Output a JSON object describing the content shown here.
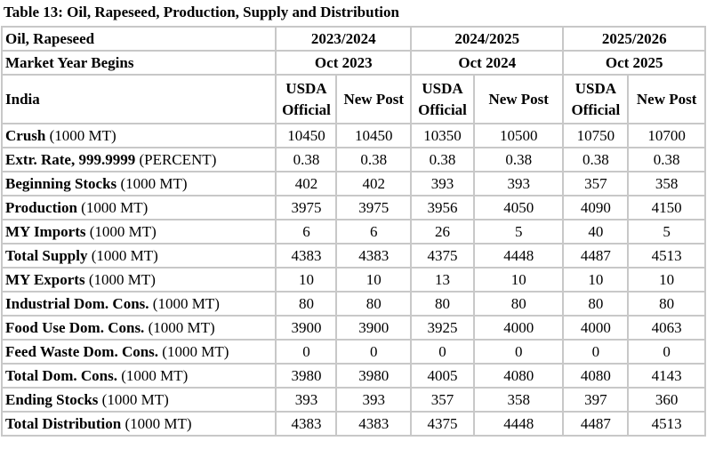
{
  "title": "Table 13: Oil, Rapeseed, Production, Supply and Distribution",
  "header": {
    "commodity": "Oil, Rapeseed",
    "market_year_label": "Market Year Begins",
    "country": "India",
    "years": [
      {
        "year": "2023/2024",
        "begins": "Oct 2023"
      },
      {
        "year": "2024/2025",
        "begins": "Oct 2024"
      },
      {
        "year": "2025/2026",
        "begins": "Oct 2025"
      }
    ],
    "usda_official": [
      "USDA",
      "Official"
    ],
    "new_post": "New Post"
  },
  "rows": [
    {
      "label": "Crush",
      "unit": " (1000 MT)",
      "values": [
        "10450",
        "10450",
        "10350",
        "10500",
        "10750",
        "10700"
      ]
    },
    {
      "label": "Extr. Rate, 999.9999",
      "unit": " (PERCENT)",
      "values": [
        "0.38",
        "0.38",
        "0.38",
        "0.38",
        "0.38",
        "0.38"
      ]
    },
    {
      "label": "Beginning Stocks",
      "unit": " (1000 MT)",
      "values": [
        "402",
        "402",
        "393",
        "393",
        "357",
        "358"
      ]
    },
    {
      "label": "Production",
      "unit": " (1000 MT)",
      "values": [
        "3975",
        "3975",
        "3956",
        "4050",
        "4090",
        "4150"
      ]
    },
    {
      "label": "MY Imports",
      "unit": " (1000 MT)",
      "values": [
        "6",
        "6",
        "26",
        "5",
        "40",
        "5"
      ]
    },
    {
      "label": "Total Supply",
      "unit": " (1000 MT)",
      "values": [
        "4383",
        "4383",
        "4375",
        "4448",
        "4487",
        "4513"
      ]
    },
    {
      "label": "MY Exports",
      "unit": " (1000 MT)",
      "values": [
        "10",
        "10",
        "13",
        "10",
        "10",
        "10"
      ]
    },
    {
      "label": "Industrial Dom. Cons.",
      "unit": " (1000 MT)",
      "values": [
        "80",
        "80",
        "80",
        "80",
        "80",
        "80"
      ]
    },
    {
      "label": "Food Use Dom. Cons.",
      "unit": " (1000 MT)",
      "values": [
        "3900",
        "3900",
        "3925",
        "4000",
        "4000",
        "4063"
      ]
    },
    {
      "label": "Feed Waste Dom. Cons.",
      "unit": " (1000 MT)",
      "values": [
        "0",
        "0",
        "0",
        "0",
        "0",
        "0"
      ]
    },
    {
      "label": "Total Dom. Cons.",
      "unit": " (1000 MT)",
      "values": [
        "3980",
        "3980",
        "4005",
        "4080",
        "4080",
        "4143"
      ]
    },
    {
      "label": "Ending Stocks",
      "unit": " (1000 MT)",
      "values": [
        "393",
        "393",
        "357",
        "358",
        "397",
        "360"
      ]
    },
    {
      "label": "Total Distribution",
      "unit": " (1000 MT)",
      "values": [
        "4383",
        "4383",
        "4375",
        "4448",
        "4487",
        "4513"
      ]
    }
  ]
}
